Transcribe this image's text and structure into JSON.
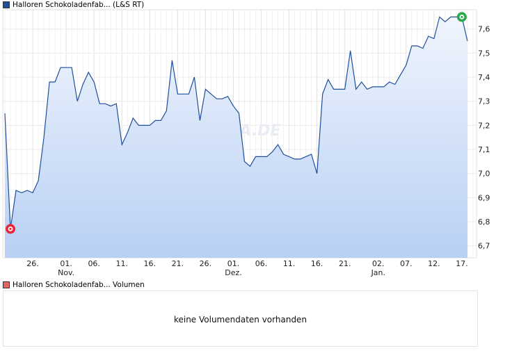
{
  "price_legend": {
    "label": "Halloren Schokoladenfab... (L&S RT)",
    "color": "#1f4e9c"
  },
  "volume_legend": {
    "label": "Halloren Schokoladenfab... Volumen",
    "color": "#e06666"
  },
  "volume_message": "keine Volumendaten vorhanden",
  "watermark": "ARIVA.DE",
  "chart_data": {
    "type": "area",
    "y_ticks": [
      "6,7",
      "6,8",
      "6,9",
      "7,0",
      "7,1",
      "7,2",
      "7,3",
      "7,4",
      "7,5",
      "7,6"
    ],
    "ylim": [
      6.65,
      7.68
    ],
    "x_ticks": [
      {
        "label": "26.",
        "x": 5
      },
      {
        "label": "01.",
        "x": 11,
        "sub": "Nov."
      },
      {
        "label": "06.",
        "x": 16
      },
      {
        "label": "11.",
        "x": 21
      },
      {
        "label": "16.",
        "x": 26
      },
      {
        "label": "21.",
        "x": 31
      },
      {
        "label": "26.",
        "x": 36
      },
      {
        "label": "01.",
        "x": 41,
        "sub": "Dez."
      },
      {
        "label": "06.",
        "x": 46
      },
      {
        "label": "11.",
        "x": 51
      },
      {
        "label": "16.",
        "x": 56
      },
      {
        "label": "21.",
        "x": 61
      },
      {
        "label": "02.",
        "x": 67,
        "sub": "Jan."
      },
      {
        "label": "07.",
        "x": 72
      },
      {
        "label": "12.",
        "x": 77
      },
      {
        "label": "17.",
        "x": 82
      }
    ],
    "xlim": [
      0,
      84
    ],
    "points": [
      [
        0,
        7.25
      ],
      [
        1,
        6.77
      ],
      [
        2,
        6.93
      ],
      [
        3,
        6.92
      ],
      [
        4,
        6.93
      ],
      [
        5,
        6.92
      ],
      [
        6,
        6.97
      ],
      [
        7,
        7.15
      ],
      [
        8,
        7.38
      ],
      [
        9,
        7.38
      ],
      [
        10,
        7.44
      ],
      [
        11,
        7.44
      ],
      [
        12,
        7.44
      ],
      [
        13,
        7.3
      ],
      [
        14,
        7.37
      ],
      [
        15,
        7.42
      ],
      [
        16,
        7.38
      ],
      [
        17,
        7.29
      ],
      [
        18,
        7.29
      ],
      [
        19,
        7.28
      ],
      [
        20,
        7.29
      ],
      [
        21,
        7.12
      ],
      [
        22,
        7.17
      ],
      [
        23,
        7.23
      ],
      [
        24,
        7.2
      ],
      [
        25,
        7.2
      ],
      [
        26,
        7.2
      ],
      [
        27,
        7.22
      ],
      [
        28,
        7.22
      ],
      [
        29,
        7.26
      ],
      [
        30,
        7.47
      ],
      [
        31,
        7.33
      ],
      [
        32,
        7.33
      ],
      [
        33,
        7.33
      ],
      [
        34,
        7.4
      ],
      [
        35,
        7.22
      ],
      [
        36,
        7.35
      ],
      [
        37,
        7.33
      ],
      [
        38,
        7.31
      ],
      [
        39,
        7.31
      ],
      [
        40,
        7.32
      ],
      [
        41,
        7.28
      ],
      [
        42,
        7.25
      ],
      [
        43,
        7.05
      ],
      [
        44,
        7.03
      ],
      [
        45,
        7.07
      ],
      [
        46,
        7.07
      ],
      [
        47,
        7.07
      ],
      [
        48,
        7.09
      ],
      [
        49,
        7.12
      ],
      [
        50,
        7.08
      ],
      [
        51,
        7.07
      ],
      [
        52,
        7.06
      ],
      [
        53,
        7.06
      ],
      [
        54,
        7.07
      ],
      [
        55,
        7.08
      ],
      [
        56,
        7.0
      ],
      [
        57,
        7.33
      ],
      [
        58,
        7.39
      ],
      [
        59,
        7.35
      ],
      [
        60,
        7.35
      ],
      [
        61,
        7.35
      ],
      [
        62,
        7.51
      ],
      [
        63,
        7.35
      ],
      [
        64,
        7.38
      ],
      [
        65,
        7.35
      ],
      [
        66,
        7.36
      ],
      [
        67,
        7.36
      ],
      [
        68,
        7.36
      ],
      [
        69,
        7.38
      ],
      [
        70,
        7.37
      ],
      [
        71,
        7.41
      ],
      [
        72,
        7.45
      ],
      [
        73,
        7.53
      ],
      [
        74,
        7.53
      ],
      [
        75,
        7.52
      ],
      [
        76,
        7.57
      ],
      [
        77,
        7.56
      ],
      [
        78,
        7.65
      ],
      [
        79,
        7.63
      ],
      [
        80,
        7.65
      ],
      [
        81,
        7.65
      ],
      [
        82,
        7.65
      ],
      [
        83,
        7.55
      ]
    ],
    "min_marker": {
      "x": 1,
      "y": 6.77,
      "color": "#e8273a"
    },
    "max_marker": {
      "x": 82,
      "y": 7.65,
      "color": "#2aa84a"
    },
    "grid": true,
    "line_color": "#1f4e9c",
    "fill_top_color": "#f0f5fd",
    "fill_bottom_color": "#b8d0f4"
  }
}
